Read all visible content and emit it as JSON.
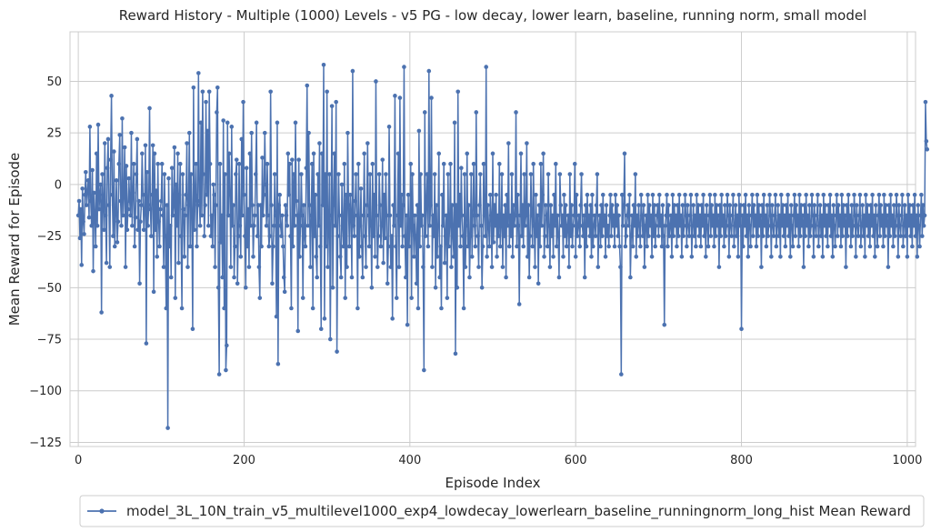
{
  "chart_data": {
    "type": "line",
    "title": "Reward History - Multiple (1000) Levels - v5 PG - low decay, lower learn, baseline, running norm, small model",
    "xlabel": "Episode Index",
    "ylabel": "Mean Reward for Episode",
    "xlim": [
      -10,
      1010
    ],
    "ylim": [
      -127,
      74
    ],
    "x_ticks": [
      0,
      200,
      400,
      600,
      800,
      1000
    ],
    "y_ticks": [
      50,
      25,
      0,
      -25,
      -50,
      -75,
      -100,
      -125
    ],
    "grid": true,
    "legend": {
      "placement": "bottom-center"
    },
    "line_color": "#4C72B0",
    "series": [
      {
        "name": "model_3L_10N_train_v5_multilevel1000_exp4_lowdecay_lowerlearn_baseline_runningnorm_long_hist Mean Reward",
        "x_start": 0,
        "x_step": 1,
        "values": [
          -15,
          -8,
          -26,
          -12,
          -39,
          -2,
          -18,
          -24,
          -5,
          6,
          -10,
          -3,
          2,
          -16,
          28,
          -8,
          -20,
          7,
          -42,
          -4,
          -15,
          -30,
          15,
          -20,
          29,
          -12,
          -5,
          0,
          -62,
          5,
          -8,
          -22,
          20,
          -15,
          -38,
          8,
          22,
          -10,
          -40,
          12,
          43,
          -5,
          -25,
          16,
          -30,
          -14,
          2,
          -28,
          -18,
          10,
          24,
          -8,
          -20,
          32,
          -15,
          -5,
          18,
          -40,
          9,
          -22,
          -12,
          3,
          -8,
          -15,
          25,
          -20,
          -4,
          10,
          -30,
          -16,
          5,
          22,
          -22,
          -8,
          -48,
          -18,
          -10,
          15,
          -5,
          -22,
          -12,
          19,
          -77,
          6,
          -20,
          -10,
          37,
          -12,
          -25,
          -5,
          19,
          -52,
          15,
          -22,
          -3,
          -35,
          10,
          -18,
          -30,
          -12,
          -8,
          10,
          -15,
          -40,
          5,
          -25,
          -60,
          -10,
          -118,
          3,
          -30,
          -20,
          -45,
          8,
          -15,
          -10,
          18,
          -55,
          0,
          -20,
          15,
          -38,
          -5,
          10,
          -25,
          -60,
          5,
          -12,
          -35,
          -15,
          -5,
          20,
          -40,
          -10,
          25,
          -30,
          5,
          -15,
          -70,
          47,
          -22,
          -5,
          10,
          -30,
          -10,
          54,
          -8,
          -20,
          30,
          -15,
          45,
          5,
          -25,
          -10,
          40,
          -5,
          26,
          -20,
          45,
          10,
          -25,
          -15,
          -30,
          0,
          -5,
          -40,
          -10,
          35,
          47,
          -50,
          -92,
          10,
          -28,
          -15,
          -45,
          31,
          -60,
          5,
          -90,
          -78,
          30,
          -15,
          15,
          -5,
          -40,
          28,
          -20,
          -10,
          -45,
          -30,
          5,
          12,
          -48,
          -25,
          10,
          -20,
          -35,
          22,
          -15,
          40,
          -5,
          -25,
          -50,
          8,
          -30,
          -12,
          -40,
          15,
          -20,
          25,
          -10,
          -35,
          -20,
          -15,
          5,
          30,
          -25,
          -10,
          -40,
          -55,
          -10,
          -30,
          13,
          -15,
          -5,
          25,
          0,
          -20,
          10,
          -15,
          -30,
          -25,
          45,
          -10,
          -48,
          -30,
          -20,
          5,
          -15,
          -64,
          30,
          -87,
          -10,
          -5,
          -20,
          -25,
          -15,
          -30,
          -45,
          -52,
          -10,
          -15,
          -20,
          15,
          -5,
          10,
          -25,
          -60,
          12,
          -30,
          5,
          -20,
          30,
          -8,
          -15,
          -71,
          12,
          -35,
          -20,
          5,
          -15,
          -55,
          -10,
          -25,
          -30,
          8,
          48,
          -20,
          25,
          -10,
          -40,
          -15,
          10,
          -60,
          15,
          -25,
          -5,
          -35,
          -45,
          5,
          -20,
          20,
          -30,
          -70,
          15,
          -10,
          58,
          -65,
          5,
          -30,
          45,
          -40,
          -20,
          5,
          -75,
          -15,
          38,
          -50,
          -10,
          15,
          -20,
          40,
          -81,
          -25,
          5,
          -15,
          -35,
          -45,
          0,
          -20,
          -30,
          10,
          -55,
          -5,
          -40,
          25,
          -10,
          -30,
          -5,
          -15,
          -45,
          55,
          -20,
          -25,
          -8,
          5,
          -15,
          -60,
          10,
          -35,
          -20,
          -2,
          -30,
          -45,
          -15,
          15,
          -25,
          -40,
          -10,
          20,
          -15,
          -30,
          5,
          -20,
          -50,
          10,
          -25,
          -5,
          -35,
          50,
          -15,
          -40,
          -25,
          5,
          -10,
          -30,
          -20,
          12,
          -38,
          -5,
          -26,
          5,
          -15,
          -48,
          -30,
          28,
          -15,
          -40,
          -25,
          -65,
          -10,
          -20,
          43,
          -30,
          -55,
          -15,
          15,
          -40,
          42,
          -20,
          -5,
          -30,
          -10,
          57,
          -25,
          -45,
          -15,
          -68,
          -5,
          -30,
          -20,
          10,
          -55,
          5,
          -20,
          -35,
          -15,
          -25,
          -48,
          -10,
          -60,
          26,
          -30,
          5,
          -20,
          -15,
          -40,
          -90,
          35,
          -25,
          -10,
          5,
          -30,
          55,
          -20,
          -10,
          42,
          -40,
          -15,
          -25,
          5,
          -50,
          -10,
          -35,
          -20,
          15,
          -45,
          -30,
          -60,
          -5,
          -20,
          10,
          -38,
          -25,
          -15,
          -55,
          5,
          -30,
          -20,
          10,
          -40,
          -10,
          -25,
          -35,
          30,
          -82,
          -10,
          -50,
          45,
          -20,
          -5,
          -30,
          8,
          -15,
          -25,
          -60,
          5,
          -40,
          -20,
          15,
          -30,
          -10,
          -45,
          -25,
          5,
          -35,
          -15,
          10,
          -20,
          -30,
          35,
          -15,
          -25,
          -40,
          -10,
          5,
          -20,
          -50,
          -30,
          10,
          -15,
          -25,
          57,
          -35,
          -10,
          -20,
          -30,
          -5,
          -15,
          -40,
          15,
          -28,
          -10,
          -20,
          -5,
          -35,
          -15,
          -25,
          10,
          -30,
          -20,
          5,
          -40,
          -15,
          -25,
          -10,
          -45,
          -5,
          -20,
          20,
          -30,
          -15,
          -25,
          5,
          -35,
          -10,
          -20,
          -15,
          35,
          -30,
          -5,
          -20,
          -58,
          -15,
          15,
          -25,
          -10,
          -30,
          5,
          -20,
          -15,
          20,
          -35,
          -10,
          -45,
          -25,
          5,
          -15,
          -30,
          10,
          -20,
          -40,
          -5,
          -25,
          -15,
          -48,
          -10,
          -30,
          10,
          -20,
          -5,
          15,
          -35,
          -25,
          -10,
          -15,
          -30,
          5,
          -20,
          -40,
          -10,
          -25,
          -15,
          -35,
          -5,
          -20,
          10,
          -30,
          -15,
          -25,
          -45,
          5,
          -10,
          -20,
          -15,
          -35,
          -5,
          -25,
          -10,
          -30,
          -20,
          -15,
          -40,
          5,
          -25,
          -10,
          -30,
          -20,
          -15,
          10,
          -35,
          -5,
          -25,
          -20,
          -15,
          -30,
          -10,
          5,
          -20,
          -25,
          -15,
          -45,
          -10,
          -30,
          -5,
          -20,
          -15,
          -25,
          -10,
          -35,
          -5,
          -30,
          -20,
          -15,
          -25,
          -10,
          5,
          -40,
          -20,
          -15,
          -30,
          -10,
          -25,
          -5,
          -20,
          -15,
          -35,
          -10,
          -25,
          -20,
          -30,
          -15,
          -5,
          -25,
          -10,
          -20,
          -15,
          -30,
          -5,
          -20,
          -10,
          -25,
          -15,
          -30,
          -40,
          -92,
          -5,
          -20,
          -10,
          15,
          -30,
          -25,
          -15,
          -10,
          -20,
          -5,
          -45,
          -25,
          -15,
          -30,
          -10,
          -20,
          5,
          -35,
          -15,
          -25,
          -10,
          -20,
          -30,
          -5,
          -15,
          -25,
          -10,
          -40,
          -20,
          -15,
          -30,
          -5,
          -25,
          -10,
          -20,
          -15,
          -35,
          -5,
          -25,
          -10,
          -30,
          -20,
          -15,
          -10,
          -25,
          -5,
          -20,
          -15,
          -30,
          -10,
          -25,
          -68,
          -20,
          -15,
          -5,
          -30,
          -10,
          -25,
          -20,
          -15,
          -35,
          -5,
          -25,
          -10,
          -20,
          -15,
          -30,
          -10,
          -25,
          -5,
          -20,
          -15,
          -35,
          -10,
          -25,
          -20,
          -5,
          -15,
          -30,
          -10,
          -20,
          -25,
          -15,
          -5,
          -35,
          -20,
          -10,
          -25,
          -15,
          -30,
          -5,
          -20,
          -10,
          -25,
          -15,
          -30,
          -10,
          -20,
          -5,
          -25,
          -15,
          -35,
          -10,
          -20,
          -30,
          -15,
          -5,
          -25,
          -10,
          -20,
          -15,
          -30,
          -5,
          -25,
          -10,
          -20,
          -15,
          -40,
          -10,
          -25,
          -5,
          -20,
          -15,
          -30,
          -10,
          -25,
          -20,
          -5,
          -15,
          -35,
          -10,
          -20,
          -25,
          -15,
          -5,
          -30,
          -20,
          -10,
          -25,
          -15,
          -35,
          -5,
          -20,
          -10,
          -70,
          -15,
          -30,
          -10,
          -20,
          -5,
          -25,
          -15,
          -35,
          -10,
          -20,
          -30,
          -15,
          -5,
          -25,
          -10,
          -20,
          -15,
          -30,
          -5,
          -25,
          -10,
          -20,
          -15,
          -40,
          -10,
          -25,
          -5,
          -20,
          -15,
          -30,
          -10,
          -25,
          -20,
          -5,
          -15,
          -35,
          -10,
          -20,
          -25,
          -15,
          -5,
          -30,
          -20,
          -10,
          -25,
          -15,
          -35,
          -5,
          -20,
          -10,
          -25,
          -15,
          -30,
          -10,
          -20,
          -5,
          -25,
          -15,
          -35,
          -10,
          -20,
          -30,
          -15,
          -5,
          -25,
          -10,
          -20,
          -15,
          -30,
          -5,
          -25,
          -10,
          -20,
          -15,
          -40,
          -10,
          -25,
          -5,
          -20,
          -15,
          -30,
          -10,
          -25,
          -20,
          -5,
          -15,
          -35,
          -10,
          -20,
          -25,
          -15,
          -5,
          -30,
          -20,
          -10,
          -25,
          -15,
          -35,
          -5,
          -20,
          -10,
          -25,
          -15,
          -30,
          -10,
          -20,
          -5,
          -25,
          -15,
          -35,
          -10,
          -20,
          -30,
          -15,
          -5,
          -25,
          -10,
          -20,
          -15,
          -30,
          -5,
          -25,
          -10,
          -20,
          -15,
          -40,
          -10,
          -25,
          -5,
          -20,
          -15,
          -30,
          -10,
          -25,
          -20,
          -5,
          -15,
          -35,
          -10,
          -20,
          -25,
          -15,
          -5,
          -30,
          -20,
          -10,
          -25,
          -15,
          -35,
          -5,
          -20,
          -10,
          -25,
          -15,
          -30,
          -10,
          -20,
          -5,
          -25,
          -15,
          -35,
          -10,
          -20,
          -30,
          -15,
          -5,
          -25,
          -10,
          -20,
          -15,
          -30,
          -5,
          -25,
          -10,
          -20,
          -15,
          -40,
          -10,
          -25,
          -5,
          -20,
          -15,
          -30,
          -10,
          -25,
          -20,
          -5,
          -15,
          -35,
          -10,
          -20,
          -25,
          -15,
          -5,
          -30,
          -20,
          -10,
          -25,
          -15,
          -35,
          -5,
          -20,
          -10,
          -25,
          -15,
          -30,
          -10,
          -20,
          -5,
          -25,
          -15,
          -35,
          -10,
          -20,
          -30,
          -15,
          -5,
          -25,
          -10,
          -20,
          -15,
          40,
          21,
          17
        ]
      }
    ]
  }
}
